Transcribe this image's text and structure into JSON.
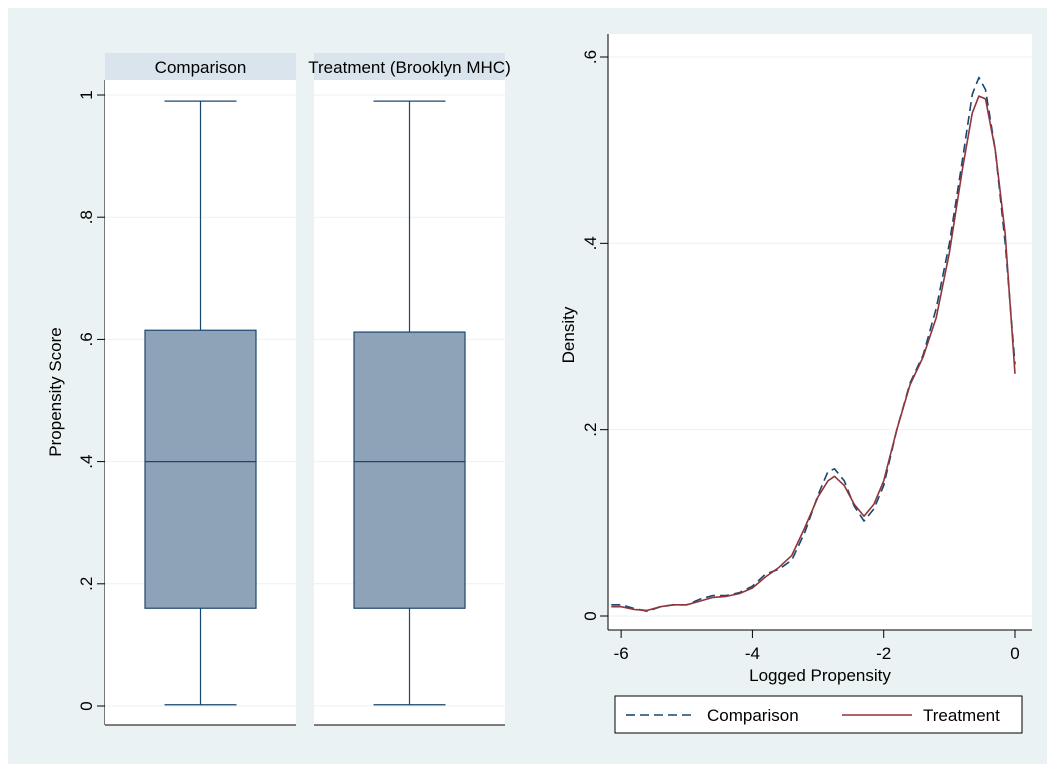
{
  "chart_data": [
    {
      "type": "box",
      "ylabel": "Propensity Score",
      "ylim": [
        0,
        1
      ],
      "yticks": [
        {
          "value": 0,
          "label": "0"
        },
        {
          "value": 0.2,
          "label": ".2"
        },
        {
          "value": 0.4,
          "label": ".4"
        },
        {
          "value": 0.6,
          "label": ".6"
        },
        {
          "value": 0.8,
          "label": ".8"
        },
        {
          "value": 1,
          "label": "1"
        }
      ],
      "grid": true,
      "panels": [
        {
          "name": "Comparison",
          "min": 0.002,
          "q1": 0.16,
          "median": 0.4,
          "q3": 0.615,
          "max": 0.99
        },
        {
          "name": "Treatment (Brooklyn MHC)",
          "min": 0.002,
          "q1": 0.16,
          "median": 0.4,
          "q3": 0.612,
          "max": 0.99
        }
      ],
      "colors": {
        "box_fill": "#8fa3b8",
        "box_stroke": "#1a476f",
        "header": "#dae4ec"
      }
    },
    {
      "type": "line",
      "xlabel": "Logged Propensity",
      "ylabel": "Density",
      "xlim": [
        -6.2,
        0
      ],
      "ylim": [
        0,
        0.6
      ],
      "xticks": [
        {
          "value": -6,
          "label": "-6"
        },
        {
          "value": -4,
          "label": "-4"
        },
        {
          "value": -2,
          "label": "-2"
        },
        {
          "value": 0,
          "label": "0"
        }
      ],
      "yticks": [
        {
          "value": 0,
          "label": "0"
        },
        {
          "value": 0.2,
          "label": ".2"
        },
        {
          "value": 0.4,
          "label": ".4"
        },
        {
          "value": 0.6,
          "label": ".6"
        }
      ],
      "grid": true,
      "legend_position": "bottom",
      "series": [
        {
          "name": "Comparison",
          "style": "dashed",
          "color": "#1a476f",
          "points": [
            [
              -6.15,
              0.012
            ],
            [
              -6.0,
              0.012
            ],
            [
              -5.8,
              0.008
            ],
            [
              -5.6,
              0.005
            ],
            [
              -5.4,
              0.01
            ],
            [
              -5.2,
              0.012
            ],
            [
              -5.0,
              0.012
            ],
            [
              -4.8,
              0.018
            ],
            [
              -4.6,
              0.022
            ],
            [
              -4.4,
              0.022
            ],
            [
              -4.2,
              0.025
            ],
            [
              -4.0,
              0.032
            ],
            [
              -3.8,
              0.045
            ],
            [
              -3.6,
              0.05
            ],
            [
              -3.4,
              0.06
            ],
            [
              -3.2,
              0.09
            ],
            [
              -3.0,
              0.13
            ],
            [
              -2.85,
              0.155
            ],
            [
              -2.75,
              0.158
            ],
            [
              -2.6,
              0.145
            ],
            [
              -2.45,
              0.118
            ],
            [
              -2.3,
              0.102
            ],
            [
              -2.15,
              0.115
            ],
            [
              -2.0,
              0.14
            ],
            [
              -1.8,
              0.2
            ],
            [
              -1.6,
              0.25
            ],
            [
              -1.4,
              0.28
            ],
            [
              -1.2,
              0.33
            ],
            [
              -1.0,
              0.4
            ],
            [
              -0.8,
              0.49
            ],
            [
              -0.65,
              0.56
            ],
            [
              -0.55,
              0.578
            ],
            [
              -0.45,
              0.565
            ],
            [
              -0.3,
              0.5
            ],
            [
              -0.15,
              0.4
            ],
            [
              0.0,
              0.27
            ]
          ]
        },
        {
          "name": "Treatment",
          "style": "solid",
          "color": "#90353b",
          "points": [
            [
              -6.15,
              0.01
            ],
            [
              -6.0,
              0.01
            ],
            [
              -5.8,
              0.007
            ],
            [
              -5.6,
              0.006
            ],
            [
              -5.4,
              0.01
            ],
            [
              -5.2,
              0.012
            ],
            [
              -5.0,
              0.012
            ],
            [
              -4.8,
              0.016
            ],
            [
              -4.6,
              0.02
            ],
            [
              -4.4,
              0.021
            ],
            [
              -4.2,
              0.024
            ],
            [
              -4.0,
              0.03
            ],
            [
              -3.8,
              0.042
            ],
            [
              -3.6,
              0.052
            ],
            [
              -3.4,
              0.065
            ],
            [
              -3.2,
              0.095
            ],
            [
              -3.0,
              0.128
            ],
            [
              -2.85,
              0.145
            ],
            [
              -2.75,
              0.15
            ],
            [
              -2.6,
              0.14
            ],
            [
              -2.45,
              0.12
            ],
            [
              -2.3,
              0.107
            ],
            [
              -2.15,
              0.12
            ],
            [
              -2.0,
              0.145
            ],
            [
              -1.8,
              0.2
            ],
            [
              -1.6,
              0.248
            ],
            [
              -1.4,
              0.278
            ],
            [
              -1.2,
              0.32
            ],
            [
              -1.0,
              0.39
            ],
            [
              -0.8,
              0.48
            ],
            [
              -0.65,
              0.54
            ],
            [
              -0.55,
              0.558
            ],
            [
              -0.45,
              0.555
            ],
            [
              -0.3,
              0.5
            ],
            [
              -0.15,
              0.41
            ],
            [
              0.0,
              0.26
            ]
          ]
        }
      ]
    }
  ],
  "background": "#eaf2f3"
}
